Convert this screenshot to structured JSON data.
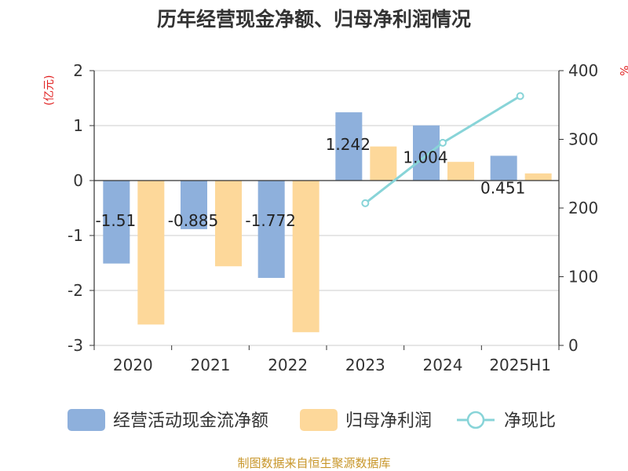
{
  "chart_data": {
    "type": "bar",
    "title": "历年经营现金净额、归母净利润情况",
    "categories": [
      "2020",
      "2021",
      "2022",
      "2023",
      "2024",
      "2025H1"
    ],
    "series": [
      {
        "name": "经营活动现金流净额",
        "type": "bar",
        "axis": "left",
        "color": "#8eb0dc",
        "values": [
          -1.51,
          -0.885,
          -1.772,
          1.242,
          1.004,
          0.451
        ],
        "labels": [
          "-1.51",
          "-0.885",
          "-1.772",
          "1.242",
          "1.004",
          "0.451"
        ]
      },
      {
        "name": "归母净利润",
        "type": "bar",
        "axis": "left",
        "color": "#fdd89a",
        "values": [
          -2.62,
          -1.56,
          -2.76,
          0.62,
          0.34,
          0.13
        ]
      },
      {
        "name": "净现比",
        "type": "line",
        "axis": "right",
        "color": "#88d4d8",
        "values": [
          null,
          null,
          null,
          207,
          295,
          363
        ]
      }
    ],
    "y_left": {
      "unit": "(亿元)",
      "ylim": [
        -3,
        2
      ],
      "ticks": [
        "2",
        "1",
        "0",
        "-1",
        "-2",
        "-3"
      ]
    },
    "y_right": {
      "unit": "%",
      "ylim": [
        0,
        400
      ],
      "ticks": [
        "400",
        "300",
        "200",
        "100",
        "0"
      ]
    },
    "grid": true,
    "legend_position": "bottom"
  },
  "source": "制图数据来自恒生聚源数据库"
}
